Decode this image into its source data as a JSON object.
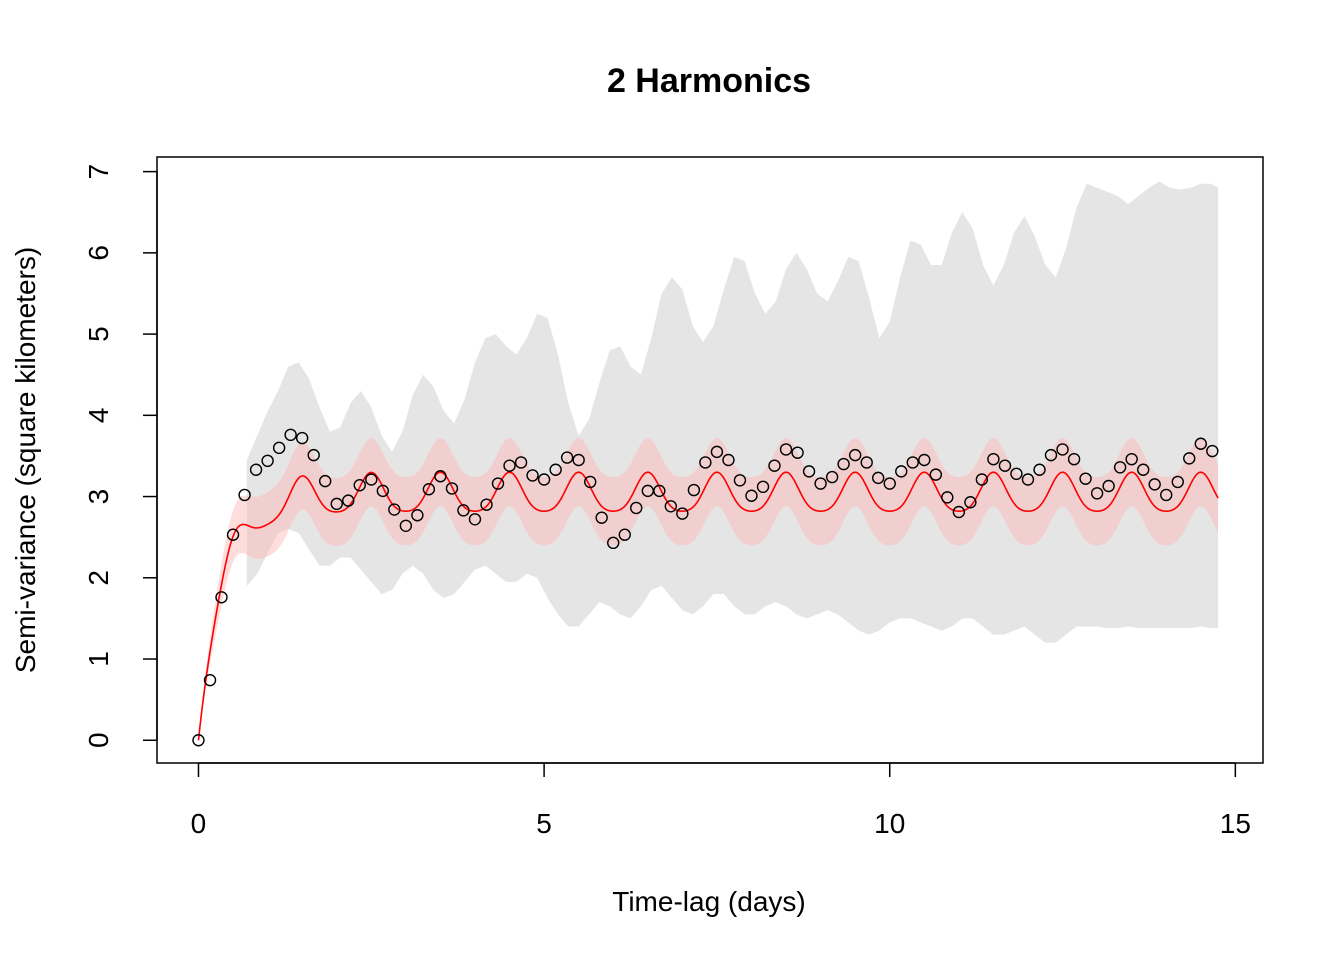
{
  "chart_data": {
    "type": "scatter",
    "title": "2 Harmonics",
    "xlabel": "Time-lag (days)",
    "ylabel": "Semi-variance (square kilometers)",
    "xlim": [
      -0.6,
      15.4
    ],
    "ylim": [
      -0.28,
      7.18
    ],
    "xticks": [
      0,
      5,
      10,
      15
    ],
    "xtick_labels": [
      "0",
      "5",
      "10",
      "15"
    ],
    "yticks": [
      0,
      1,
      2,
      3,
      4,
      5,
      6,
      7
    ],
    "ytick_labels": [
      "0",
      "1",
      "2",
      "3",
      "4",
      "5",
      "6",
      "7"
    ],
    "grid": false,
    "legend": "none",
    "colors": {
      "points": "#000000",
      "fit_line": "#ff0000",
      "fit_band": "#ffd0d0",
      "data_band": "#d3d3d3"
    },
    "series": [
      {
        "kind": "band",
        "x": [
          0.7,
          0.85,
          1.0,
          1.15,
          1.3,
          1.45,
          1.6,
          1.75,
          1.9,
          2.05,
          2.2,
          2.35,
          2.5,
          2.65,
          2.8,
          2.95,
          3.1,
          3.25,
          3.4,
          3.55,
          3.7,
          3.85,
          4.0,
          4.15,
          4.3,
          4.45,
          4.6,
          4.75,
          4.9,
          5.05,
          5.2,
          5.35,
          5.5,
          5.65,
          5.8,
          5.95,
          6.1,
          6.25,
          6.4,
          6.55,
          6.7,
          6.85,
          7.0,
          7.15,
          7.3,
          7.45,
          7.6,
          7.75,
          7.9,
          8.05,
          8.2,
          8.35,
          8.5,
          8.65,
          8.8,
          8.95,
          9.1,
          9.25,
          9.4,
          9.55,
          9.7,
          9.85,
          10.0,
          10.15,
          10.3,
          10.45,
          10.6,
          10.75,
          10.9,
          11.05,
          11.2,
          11.35,
          11.5,
          11.65,
          11.8,
          11.95,
          12.1,
          12.25,
          12.4,
          12.55,
          12.7,
          12.85,
          13.0,
          13.15,
          13.3,
          13.45,
          13.6,
          13.75,
          13.9,
          14.05,
          14.2,
          14.35,
          14.5,
          14.65,
          14.75
        ],
        "upper": [
          3.45,
          3.75,
          4.05,
          4.3,
          4.6,
          4.65,
          4.45,
          4.1,
          3.8,
          3.85,
          4.15,
          4.3,
          4.1,
          3.75,
          3.55,
          3.8,
          4.25,
          4.5,
          4.35,
          4.05,
          3.9,
          4.2,
          4.65,
          4.95,
          5.0,
          4.85,
          4.75,
          4.95,
          5.25,
          5.2,
          4.75,
          4.15,
          3.75,
          3.95,
          4.4,
          4.8,
          4.85,
          4.6,
          4.5,
          4.95,
          5.5,
          5.7,
          5.55,
          5.1,
          4.9,
          5.1,
          5.55,
          5.95,
          5.9,
          5.5,
          5.25,
          5.4,
          5.8,
          6.0,
          5.8,
          5.5,
          5.4,
          5.65,
          5.95,
          5.9,
          5.45,
          4.95,
          5.15,
          5.7,
          6.15,
          6.1,
          5.85,
          5.85,
          6.25,
          6.5,
          6.3,
          5.85,
          5.6,
          5.85,
          6.25,
          6.45,
          6.2,
          5.85,
          5.7,
          6.05,
          6.55,
          6.85,
          6.8,
          6.75,
          6.7,
          6.6,
          6.7,
          6.8,
          6.88,
          6.8,
          6.78,
          6.8,
          6.85,
          6.85,
          6.8
        ],
        "lower": [
          1.9,
          2.05,
          2.3,
          2.55,
          2.6,
          2.55,
          2.35,
          2.15,
          2.15,
          2.25,
          2.25,
          2.1,
          1.95,
          1.8,
          1.85,
          2.05,
          2.15,
          2.05,
          1.85,
          1.75,
          1.8,
          1.95,
          2.1,
          2.15,
          2.05,
          1.95,
          1.95,
          2.05,
          2.0,
          1.75,
          1.55,
          1.4,
          1.4,
          1.55,
          1.7,
          1.65,
          1.55,
          1.5,
          1.65,
          1.85,
          1.9,
          1.75,
          1.6,
          1.55,
          1.65,
          1.8,
          1.8,
          1.65,
          1.55,
          1.55,
          1.65,
          1.7,
          1.65,
          1.55,
          1.5,
          1.55,
          1.6,
          1.55,
          1.45,
          1.35,
          1.3,
          1.35,
          1.45,
          1.5,
          1.5,
          1.45,
          1.4,
          1.35,
          1.4,
          1.5,
          1.5,
          1.4,
          1.3,
          1.3,
          1.35,
          1.4,
          1.3,
          1.2,
          1.2,
          1.3,
          1.4,
          1.4,
          1.4,
          1.38,
          1.38,
          1.4,
          1.38,
          1.38,
          1.38,
          1.38,
          1.38,
          1.38,
          1.4,
          1.38,
          1.38
        ]
      },
      {
        "kind": "points",
        "x": [
          0.0,
          0.167,
          0.333,
          0.5,
          0.667,
          0.833,
          1.0,
          1.167,
          1.333,
          1.5,
          1.667,
          1.833,
          2.0,
          2.167,
          2.333,
          2.5,
          2.667,
          2.833,
          3.0,
          3.167,
          3.333,
          3.5,
          3.667,
          3.833,
          4.0,
          4.167,
          4.333,
          4.5,
          4.667,
          4.833,
          5.0,
          5.167,
          5.333,
          5.5,
          5.667,
          5.833,
          6.0,
          6.167,
          6.333,
          6.5,
          6.667,
          6.833,
          7.0,
          7.167,
          7.333,
          7.5,
          7.667,
          7.833,
          8.0,
          8.167,
          8.333,
          8.5,
          8.667,
          8.833,
          9.0,
          9.167,
          9.333,
          9.5,
          9.667,
          9.833,
          10.0,
          10.167,
          10.333,
          10.5,
          10.667,
          10.833,
          11.0,
          11.167,
          11.333,
          11.5,
          11.667,
          11.833,
          12.0,
          12.167,
          12.333,
          12.5,
          12.667,
          12.833,
          13.0,
          13.167,
          13.333,
          13.5,
          13.667,
          13.833,
          14.0,
          14.167,
          14.333,
          14.5,
          14.667
        ],
        "y": [
          0.0,
          0.74,
          1.76,
          2.53,
          3.02,
          3.33,
          3.44,
          3.6,
          3.76,
          3.72,
          3.51,
          3.19,
          2.91,
          2.95,
          3.14,
          3.21,
          3.07,
          2.84,
          2.64,
          2.77,
          3.09,
          3.25,
          3.1,
          2.83,
          2.72,
          2.9,
          3.16,
          3.38,
          3.42,
          3.26,
          3.21,
          3.33,
          3.48,
          3.45,
          3.18,
          2.74,
          2.43,
          2.53,
          2.86,
          3.07,
          3.07,
          2.88,
          2.79,
          3.08,
          3.42,
          3.55,
          3.45,
          3.2,
          3.01,
          3.12,
          3.38,
          3.58,
          3.54,
          3.31,
          3.16,
          3.24,
          3.4,
          3.51,
          3.42,
          3.23,
          3.16,
          3.31,
          3.42,
          3.45,
          3.27,
          2.99,
          2.81,
          2.93,
          3.21,
          3.46,
          3.38,
          3.28,
          3.21,
          3.33,
          3.51,
          3.58,
          3.46,
          3.22,
          3.04,
          3.13,
          3.36,
          3.46,
          3.33,
          3.15,
          3.02,
          3.18,
          3.47,
          3.65,
          3.56
        ]
      },
      {
        "kind": "fit_line",
        "plateau": 3.02,
        "amp1": 0.24,
        "period1": 1.0,
        "amp2": 0.04,
        "period2": 0.5,
        "range": 0.35,
        "x_max": 14.75,
        "band_halfwidth": 0.42
      }
    ]
  }
}
